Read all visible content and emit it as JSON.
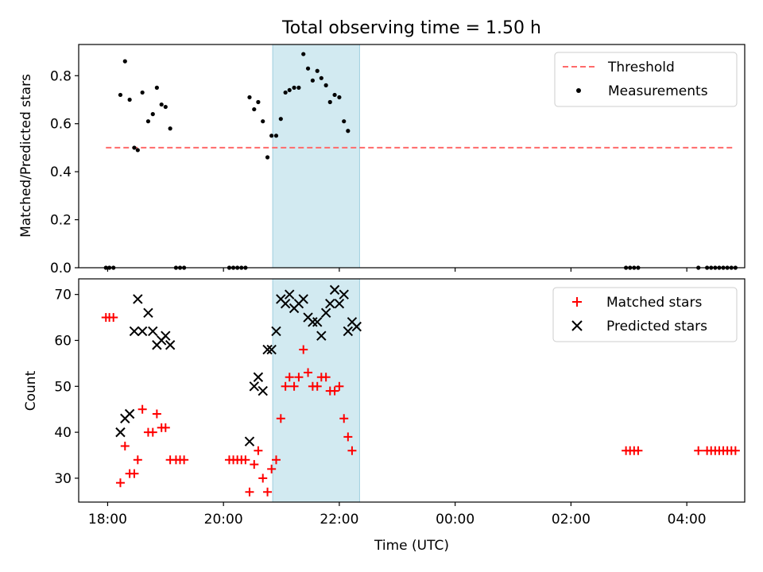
{
  "chart_data": [
    {
      "type": "scatter",
      "title": "Total observing time = 1.50 h",
      "xlabel": "",
      "ylabel": "Matched/Predicted stars",
      "ylim": [
        0,
        0.93
      ],
      "yticks": [
        0.0,
        0.2,
        0.4,
        0.6,
        0.8
      ],
      "ytick_labels": [
        "0.0",
        "0.2",
        "0.4",
        "0.6",
        "0.8"
      ],
      "x_unit": "hours since 00:00 UTC (times after midnight > 24)",
      "xlim": [
        17.5,
        29.0
      ],
      "shaded_interval": {
        "x": [
          20.85,
          22.35
        ],
        "color": "#add8e6"
      },
      "threshold": {
        "name": "Threshold",
        "value": 0.5,
        "x": [
          17.97,
          28.82
        ],
        "color": "#ff6a6a"
      },
      "series": [
        {
          "name": "Measurements",
          "color": "#000000",
          "points": [
            [
              17.97,
              0.0
            ],
            [
              18.03,
              0.0
            ],
            [
              18.1,
              0.0
            ],
            [
              18.22,
              0.72
            ],
            [
              18.3,
              0.86
            ],
            [
              18.38,
              0.7
            ],
            [
              18.46,
              0.5
            ],
            [
              18.52,
              0.49
            ],
            [
              18.6,
              0.73
            ],
            [
              18.7,
              0.61
            ],
            [
              18.78,
              0.64
            ],
            [
              18.85,
              0.75
            ],
            [
              18.93,
              0.68
            ],
            [
              19.0,
              0.67
            ],
            [
              19.08,
              0.58
            ],
            [
              19.18,
              0.0
            ],
            [
              19.25,
              0.0
            ],
            [
              19.32,
              0.0
            ],
            [
              20.1,
              0.0
            ],
            [
              20.17,
              0.0
            ],
            [
              20.24,
              0.0
            ],
            [
              20.31,
              0.0
            ],
            [
              20.38,
              0.0
            ],
            [
              20.45,
              0.71
            ],
            [
              20.53,
              0.66
            ],
            [
              20.6,
              0.69
            ],
            [
              20.68,
              0.61
            ],
            [
              20.76,
              0.46
            ],
            [
              20.83,
              0.55
            ],
            [
              20.91,
              0.55
            ],
            [
              20.99,
              0.62
            ],
            [
              21.07,
              0.73
            ],
            [
              21.14,
              0.74
            ],
            [
              21.22,
              0.75
            ],
            [
              21.3,
              0.75
            ],
            [
              21.38,
              0.89
            ],
            [
              21.46,
              0.83
            ],
            [
              21.54,
              0.78
            ],
            [
              21.62,
              0.82
            ],
            [
              21.69,
              0.79
            ],
            [
              21.77,
              0.76
            ],
            [
              21.84,
              0.69
            ],
            [
              21.92,
              0.72
            ],
            [
              22.0,
              0.71
            ],
            [
              22.08,
              0.61
            ],
            [
              22.15,
              0.57
            ],
            [
              26.95,
              0.0
            ],
            [
              27.02,
              0.0
            ],
            [
              27.09,
              0.0
            ],
            [
              27.16,
              0.0
            ],
            [
              28.2,
              0.0
            ],
            [
              28.35,
              0.0
            ],
            [
              28.42,
              0.0
            ],
            [
              28.49,
              0.0
            ],
            [
              28.56,
              0.0
            ],
            [
              28.63,
              0.0
            ],
            [
              28.7,
              0.0
            ],
            [
              28.77,
              0.0
            ],
            [
              28.84,
              0.0
            ]
          ]
        }
      ]
    },
    {
      "type": "scatter",
      "title": "",
      "xlabel": "Time (UTC)",
      "ylabel": "Count",
      "ylim": [
        24.8,
        73.4
      ],
      "yticks": [
        30,
        40,
        50,
        60,
        70
      ],
      "ytick_labels": [
        "30",
        "40",
        "50",
        "60",
        "70"
      ],
      "xlim": [
        17.5,
        29.0
      ],
      "xticks": [
        18,
        20,
        22,
        24,
        26,
        28
      ],
      "xtick_labels": [
        "18:00",
        "20:00",
        "22:00",
        "00:00",
        "02:00",
        "04:00"
      ],
      "shaded_interval": {
        "x": [
          20.85,
          22.35
        ],
        "color": "#add8e6"
      },
      "series": [
        {
          "name": "Matched stars",
          "marker": "+",
          "color": "#ff0000",
          "points": [
            [
              17.97,
              65
            ],
            [
              18.03,
              65
            ],
            [
              18.1,
              65
            ],
            [
              18.22,
              29
            ],
            [
              18.3,
              37
            ],
            [
              18.38,
              31
            ],
            [
              18.46,
              31
            ],
            [
              18.52,
              34
            ],
            [
              18.6,
              45
            ],
            [
              18.7,
              40
            ],
            [
              18.78,
              40
            ],
            [
              18.85,
              44
            ],
            [
              18.93,
              41
            ],
            [
              19.0,
              41
            ],
            [
              19.08,
              34
            ],
            [
              19.18,
              34
            ],
            [
              19.25,
              34
            ],
            [
              19.32,
              34
            ],
            [
              20.1,
              34
            ],
            [
              20.17,
              34
            ],
            [
              20.24,
              34
            ],
            [
              20.31,
              34
            ],
            [
              20.38,
              34
            ],
            [
              20.45,
              27
            ],
            [
              20.53,
              33
            ],
            [
              20.6,
              36
            ],
            [
              20.68,
              30
            ],
            [
              20.76,
              27
            ],
            [
              20.83,
              32
            ],
            [
              20.91,
              34
            ],
            [
              20.99,
              43
            ],
            [
              21.07,
              50
            ],
            [
              21.14,
              52
            ],
            [
              21.22,
              50
            ],
            [
              21.3,
              52
            ],
            [
              21.38,
              58
            ],
            [
              21.46,
              53
            ],
            [
              21.54,
              50
            ],
            [
              21.62,
              50
            ],
            [
              21.69,
              52
            ],
            [
              21.77,
              52
            ],
            [
              21.84,
              49
            ],
            [
              21.92,
              49
            ],
            [
              22.0,
              50
            ],
            [
              22.08,
              43
            ],
            [
              22.15,
              39
            ],
            [
              22.22,
              36
            ],
            [
              26.95,
              36
            ],
            [
              27.02,
              36
            ],
            [
              27.09,
              36
            ],
            [
              27.16,
              36
            ],
            [
              28.2,
              36
            ],
            [
              28.35,
              36
            ],
            [
              28.42,
              36
            ],
            [
              28.49,
              36
            ],
            [
              28.56,
              36
            ],
            [
              28.63,
              36
            ],
            [
              28.7,
              36
            ],
            [
              28.77,
              36
            ],
            [
              28.84,
              36
            ]
          ]
        },
        {
          "name": "Predicted stars",
          "marker": "x",
          "color": "#000000",
          "points": [
            [
              18.22,
              40
            ],
            [
              18.3,
              43
            ],
            [
              18.38,
              44
            ],
            [
              18.46,
              62
            ],
            [
              18.52,
              69
            ],
            [
              18.6,
              62
            ],
            [
              18.7,
              66
            ],
            [
              18.78,
              62
            ],
            [
              18.85,
              59
            ],
            [
              18.93,
              60
            ],
            [
              19.0,
              61
            ],
            [
              19.08,
              59
            ],
            [
              20.45,
              38
            ],
            [
              20.53,
              50
            ],
            [
              20.6,
              52
            ],
            [
              20.68,
              49
            ],
            [
              20.76,
              58
            ],
            [
              20.83,
              58
            ],
            [
              20.91,
              62
            ],
            [
              20.99,
              69
            ],
            [
              21.07,
              68
            ],
            [
              21.14,
              70
            ],
            [
              21.22,
              67
            ],
            [
              21.3,
              68
            ],
            [
              21.38,
              69
            ],
            [
              21.46,
              65
            ],
            [
              21.54,
              64
            ],
            [
              21.62,
              64
            ],
            [
              21.69,
              61
            ],
            [
              21.77,
              66
            ],
            [
              21.84,
              68
            ],
            [
              21.92,
              71
            ],
            [
              22.0,
              68
            ],
            [
              22.08,
              70
            ],
            [
              22.15,
              62
            ],
            [
              22.22,
              64
            ],
            [
              22.3,
              63
            ]
          ]
        }
      ]
    }
  ]
}
